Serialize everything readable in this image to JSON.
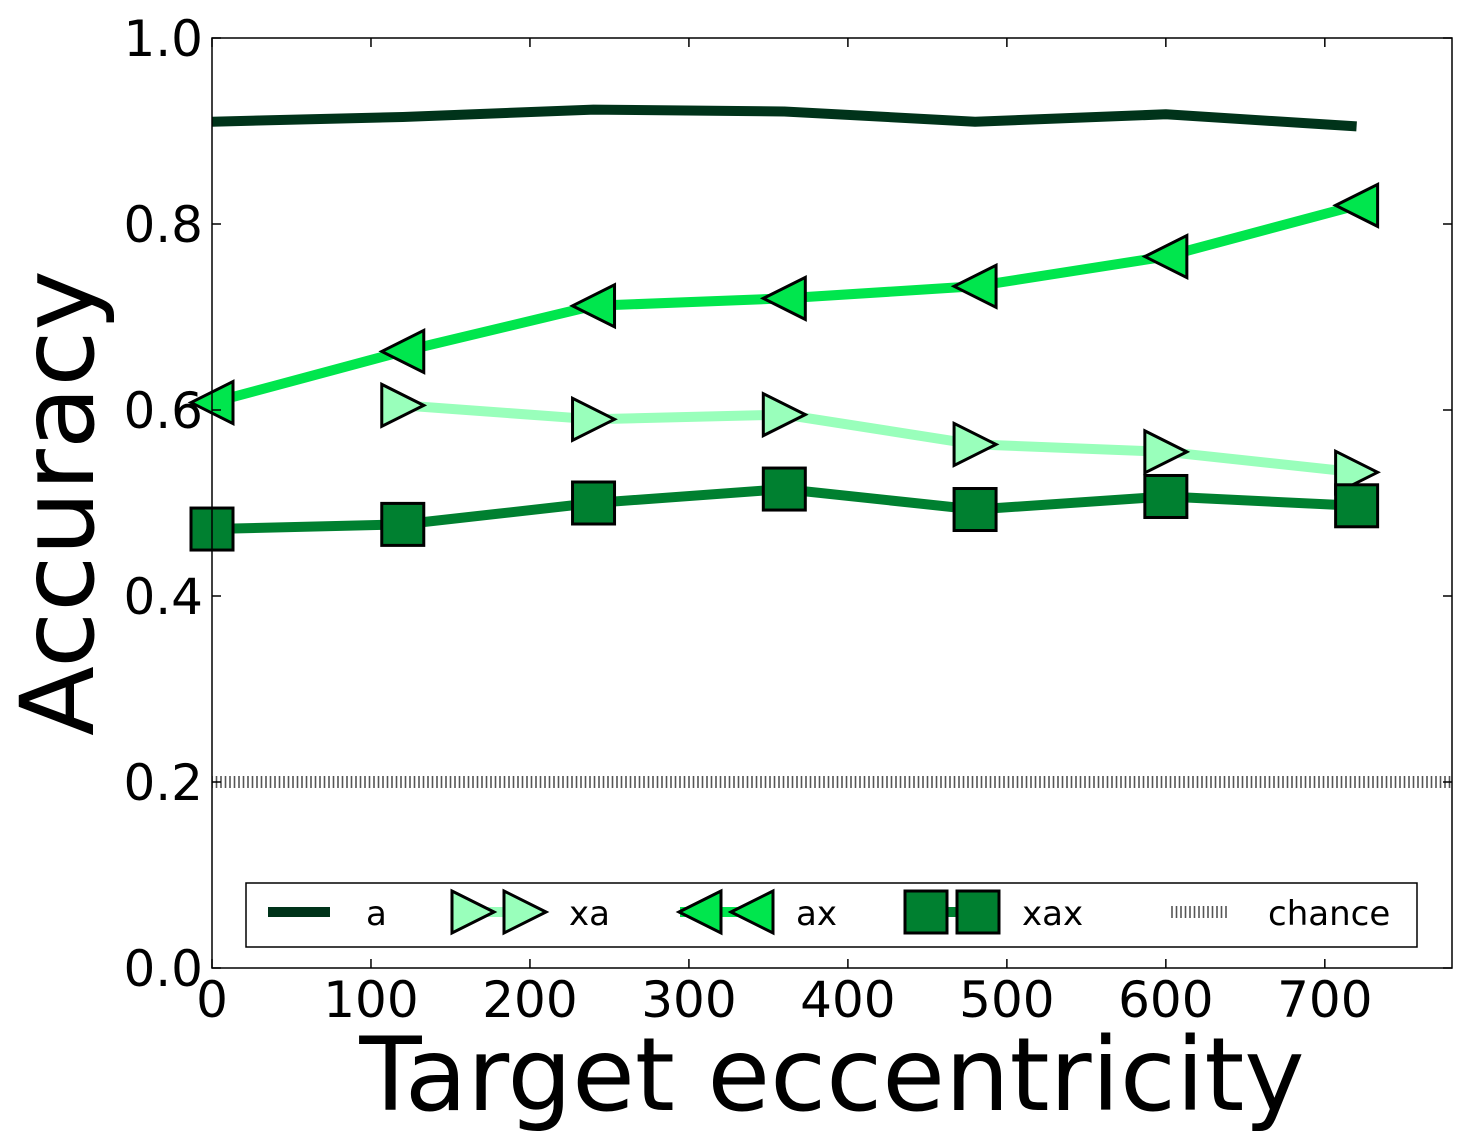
{
  "chart_data": {
    "type": "line",
    "title": "",
    "xlabel": "Target eccentricity",
    "ylabel": "Accuracy",
    "xlim": [
      0,
      780
    ],
    "ylim": [
      0.0,
      1.0
    ],
    "xticks": [
      0,
      100,
      200,
      300,
      400,
      500,
      600,
      700
    ],
    "xtick_labels": [
      "0",
      "100",
      "200",
      "300",
      "400",
      "500",
      "600",
      "700"
    ],
    "yticks": [
      0.0,
      0.2,
      0.4,
      0.6,
      0.8,
      1.0
    ],
    "ytick_labels": [
      "0.0",
      "0.2",
      "0.4",
      "0.6",
      "0.8",
      "1.0"
    ],
    "grid": false,
    "legend_position": "lower-center",
    "series": [
      {
        "name": "a",
        "color": "#00331a",
        "marker": "none",
        "x": [
          0,
          120,
          240,
          360,
          480,
          600,
          720
        ],
        "y": [
          0.91,
          0.915,
          0.923,
          0.921,
          0.91,
          0.918,
          0.905
        ]
      },
      {
        "name": "xa",
        "color": "#99ffbb",
        "marker": "triangle-right",
        "x": [
          120,
          240,
          360,
          480,
          600,
          720
        ],
        "y": [
          0.605,
          0.59,
          0.595,
          0.563,
          0.555,
          0.533
        ]
      },
      {
        "name": "ax",
        "color": "#00e64d",
        "marker": "triangle-left",
        "x": [
          0,
          120,
          240,
          360,
          480,
          600,
          720
        ],
        "y": [
          0.608,
          0.663,
          0.712,
          0.72,
          0.733,
          0.765,
          0.82
        ]
      },
      {
        "name": "xax",
        "color": "#008030",
        "marker": "square",
        "x": [
          0,
          120,
          240,
          360,
          480,
          600,
          720
        ],
        "y": [
          0.472,
          0.477,
          0.5,
          0.515,
          0.493,
          0.507,
          0.497
        ]
      },
      {
        "name": "chance",
        "color": "#555555",
        "marker": "none",
        "style": "hatched",
        "x": [
          0,
          780
        ],
        "y": [
          0.2,
          0.2
        ]
      }
    ]
  }
}
